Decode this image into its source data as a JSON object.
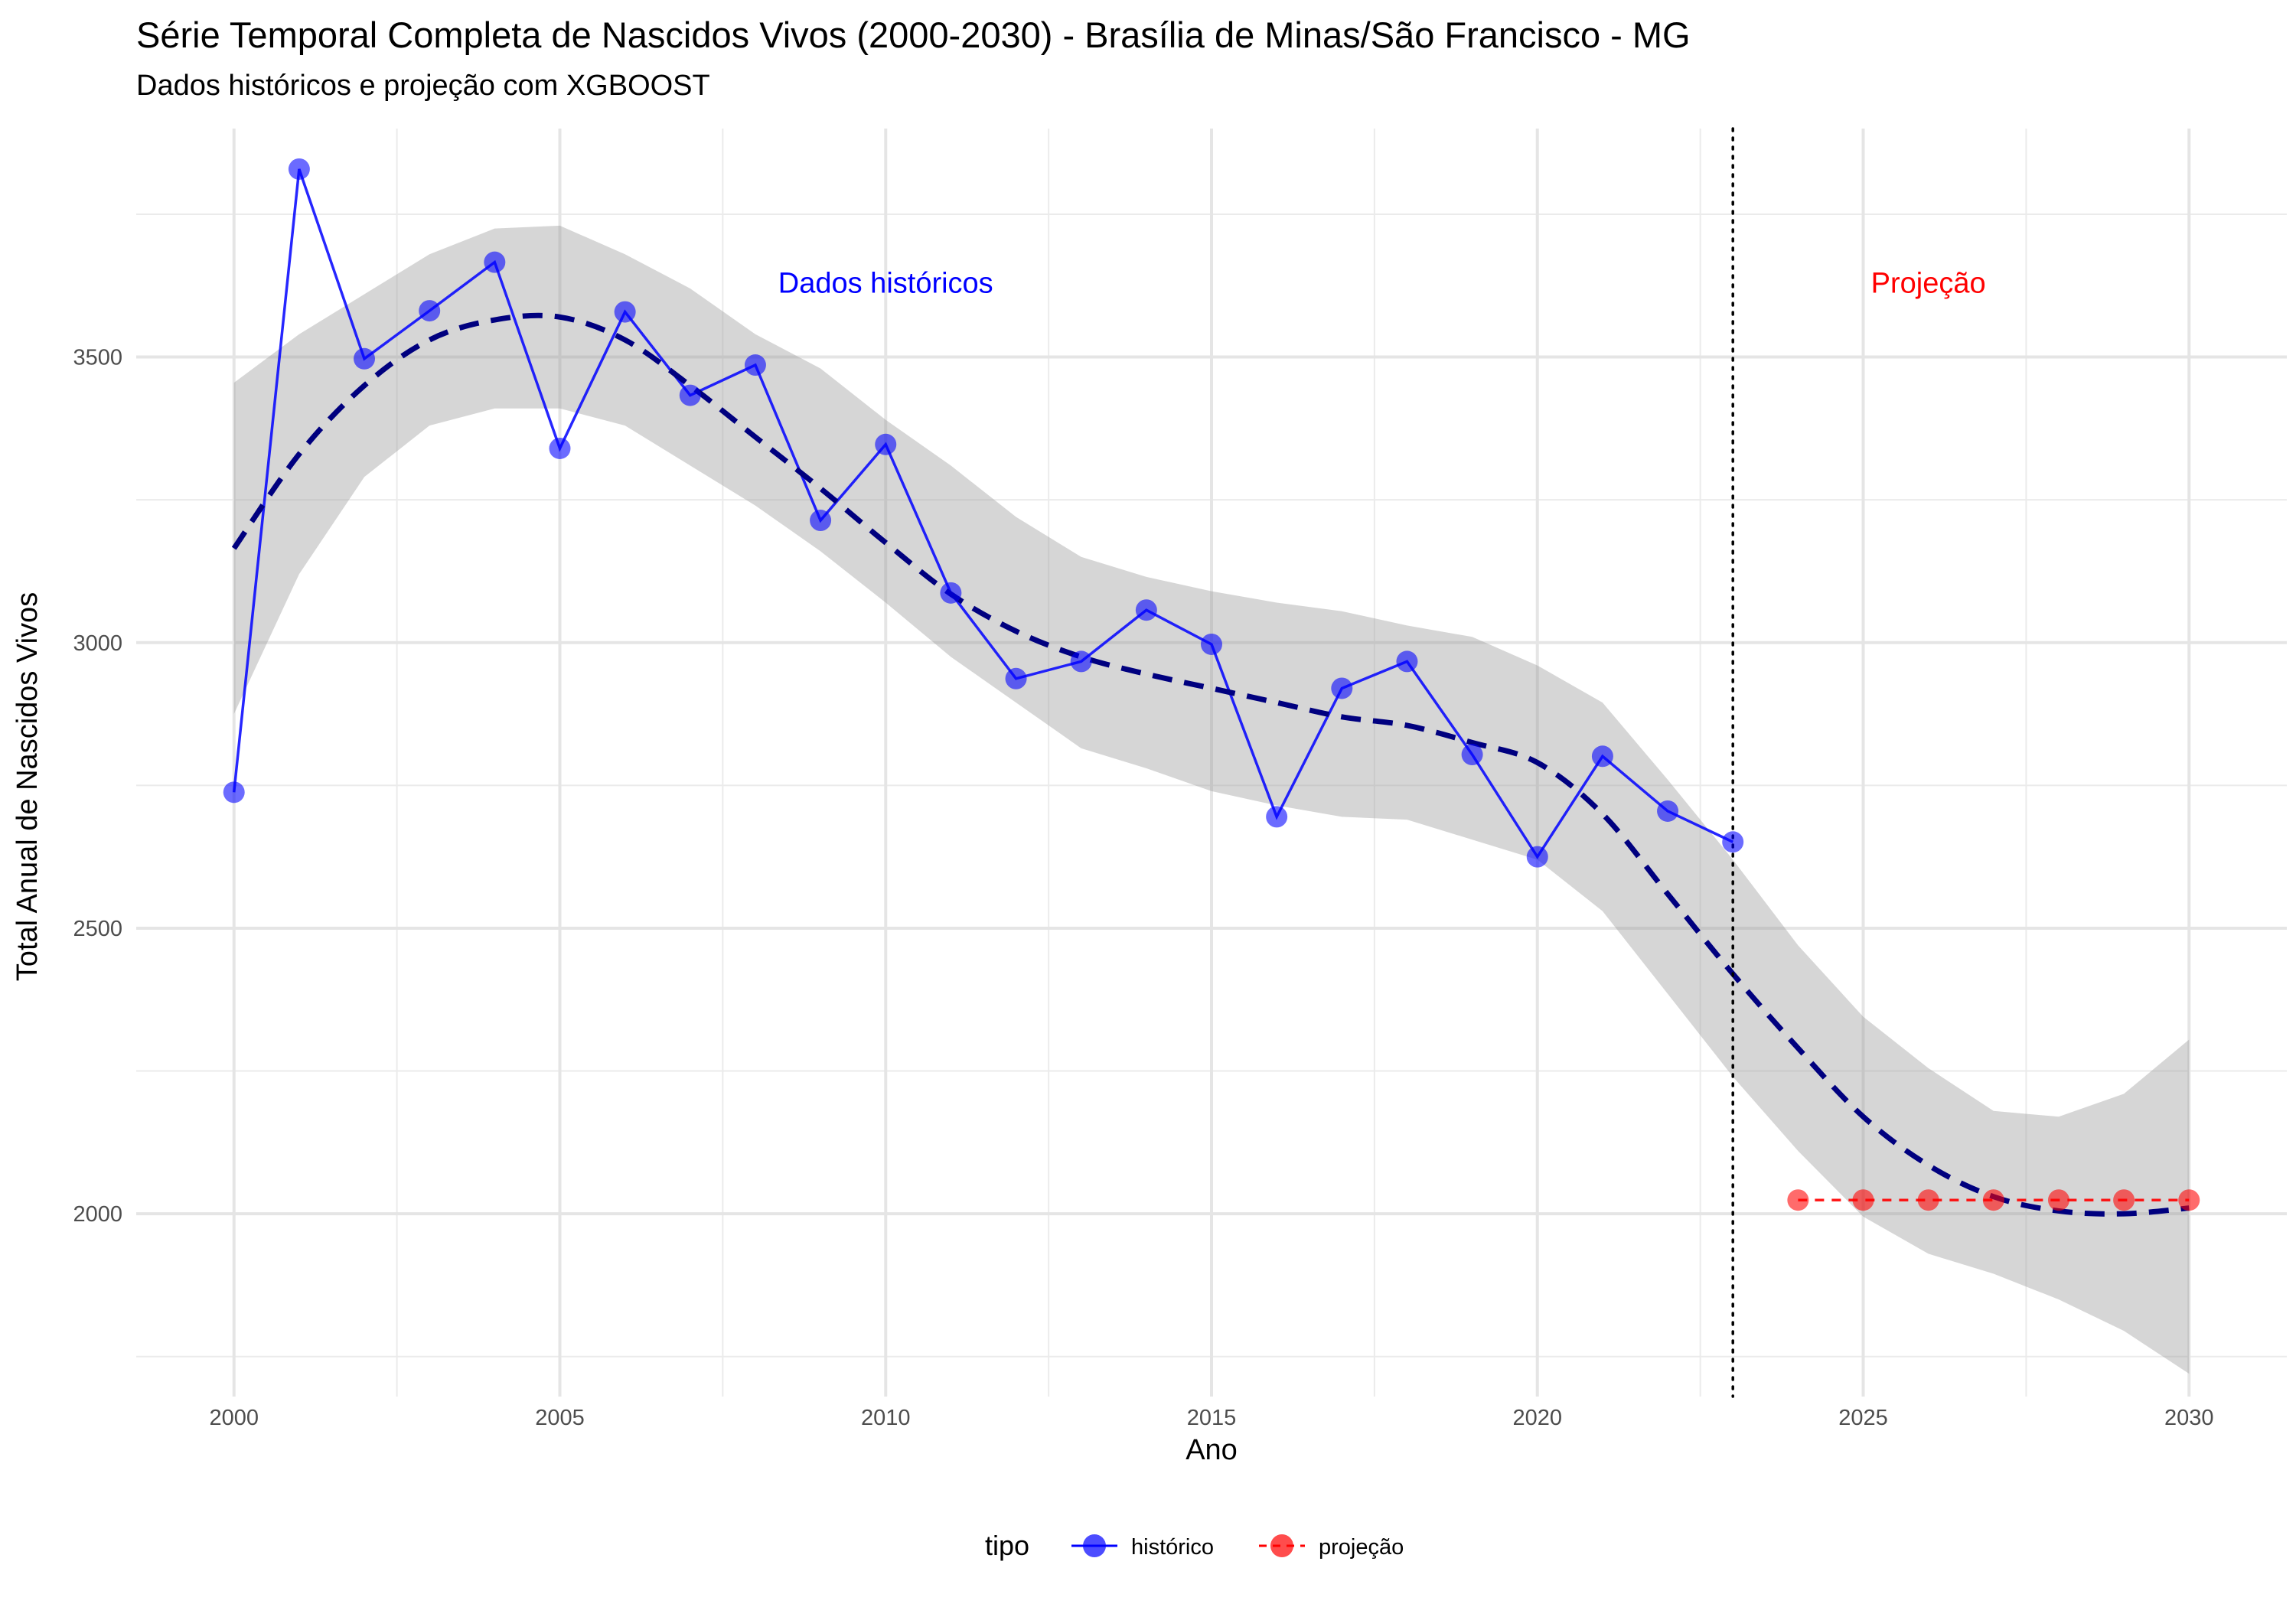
{
  "chart_data": {
    "type": "line",
    "title": "Série Temporal Completa de Nascidos Vivos (2000-2030) -  Brasília de Minas/São Francisco - MG",
    "subtitle": "Dados históricos e projeção com XGBOOST",
    "xlabel": "Ano",
    "ylabel": "Total Anual de Nascidos Vivos",
    "xlim": [
      1998.5,
      2031.5
    ],
    "ylim": [
      1680,
      3900
    ],
    "x_ticks": [
      2000,
      2005,
      2010,
      2015,
      2020,
      2025,
      2030
    ],
    "y_ticks": [
      2000,
      2500,
      3000,
      3500
    ],
    "grid": true,
    "legend": {
      "title": "tipo",
      "position": "bottom",
      "entries": [
        "histórico",
        "projeção"
      ]
    },
    "vline": {
      "x": 2023,
      "style": "dotted",
      "color": "#000000"
    },
    "annotations": [
      {
        "text": "Dados históricos",
        "x": 2010,
        "y": 3630,
        "color": "#0000ff"
      },
      {
        "text": "Projeção",
        "x": 2026,
        "y": 3630,
        "color": "#ff0000"
      }
    ],
    "series": [
      {
        "name": "histórico",
        "color": "#0000ff",
        "x": [
          2000,
          2001,
          2002,
          2003,
          2004,
          2005,
          2006,
          2007,
          2008,
          2009,
          2010,
          2011,
          2012,
          2013,
          2014,
          2015,
          2016,
          2017,
          2018,
          2019,
          2020,
          2021,
          2022,
          2023
        ],
        "y": [
          2738,
          3829,
          3497,
          3581,
          3666,
          3340,
          3579,
          3433,
          3486,
          3214,
          3347,
          3087,
          2937,
          2967,
          3057,
          2997,
          2695,
          2920,
          2967,
          2804,
          2625,
          2801,
          2705,
          2651
        ]
      },
      {
        "name": "projeção",
        "color": "#ff0000",
        "x": [
          2024,
          2025,
          2026,
          2027,
          2028,
          2029,
          2030
        ],
        "y": [
          2024,
          2024,
          2024,
          2024,
          2024,
          2024,
          2024
        ]
      }
    ],
    "smooth": {
      "color": "#00007f",
      "style": "dashed",
      "x": [
        2000,
        2001,
        2002,
        2003,
        2004,
        2005,
        2006,
        2007,
        2008,
        2009,
        2010,
        2011,
        2012,
        2013,
        2014,
        2015,
        2016,
        2017,
        2018,
        2019,
        2020,
        2021,
        2022,
        2023,
        2024,
        2025,
        2026,
        2027,
        2028,
        2029,
        2030
      ],
      "y": [
        3165,
        3330,
        3450,
        3530,
        3565,
        3570,
        3530,
        3450,
        3360,
        3270,
        3175,
        3085,
        3020,
        2975,
        2945,
        2920,
        2895,
        2870,
        2855,
        2825,
        2790,
        2700,
        2560,
        2420,
        2290,
        2170,
        2085,
        2030,
        2005,
        2000,
        2010
      ],
      "band_upper": [
        3455,
        3540,
        3610,
        3680,
        3725,
        3730,
        3680,
        3620,
        3540,
        3480,
        3390,
        3310,
        3220,
        3150,
        3115,
        3090,
        3070,
        3055,
        3030,
        3010,
        2960,
        2895,
        2760,
        2620,
        2470,
        2345,
        2255,
        2180,
        2170,
        2210,
        2305
      ],
      "band_lower": [
        2875,
        3120,
        3290,
        3380,
        3410,
        3410,
        3380,
        3310,
        3240,
        3160,
        3070,
        2975,
        2895,
        2815,
        2780,
        2740,
        2715,
        2695,
        2690,
        2655,
        2620,
        2530,
        2385,
        2240,
        2110,
        1995,
        1930,
        1895,
        1850,
        1795,
        1720
      ]
    }
  }
}
